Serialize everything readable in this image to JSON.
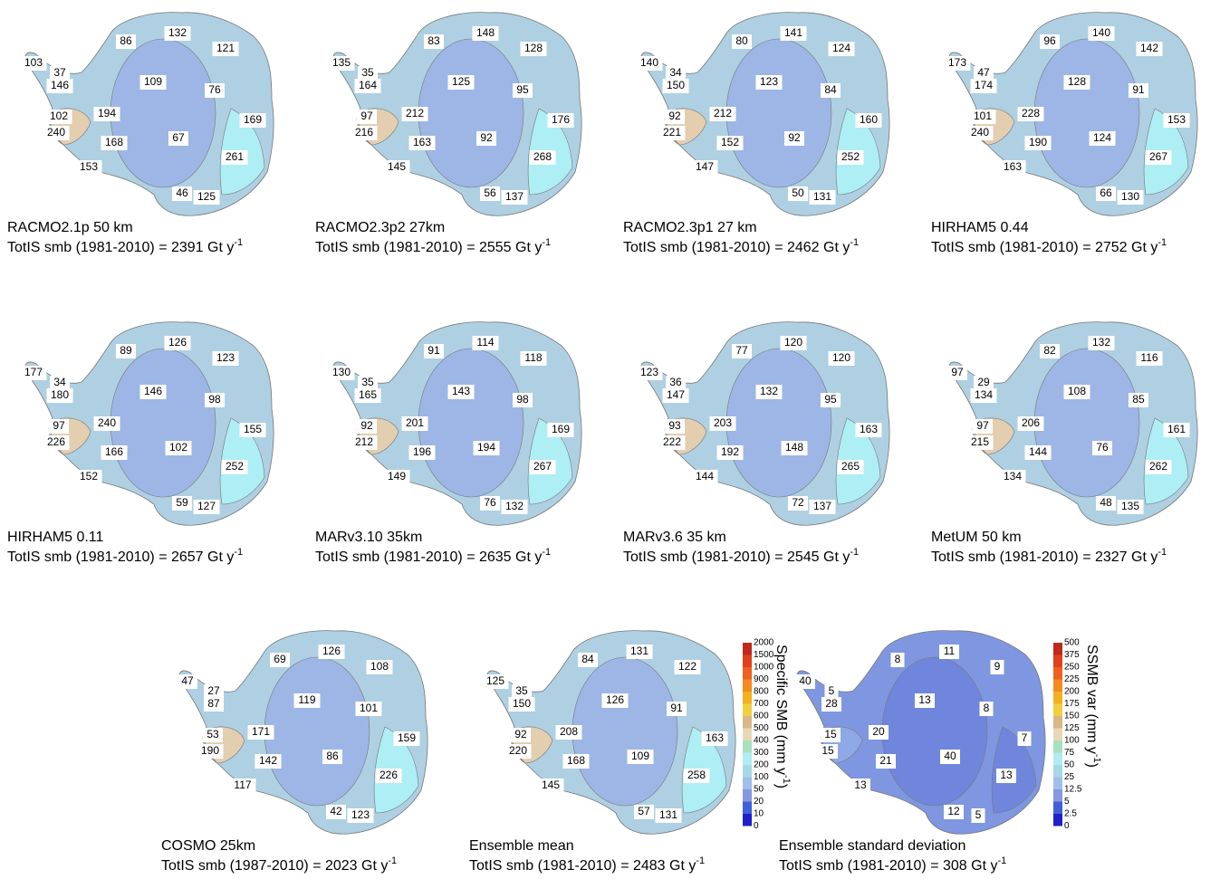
{
  "panels": [
    {
      "title": "RACMO2.1p 50 km",
      "subtitle": "TotIS smb (1981-2010) = 2391 Gt y",
      "subtitle_sup": "-1",
      "basins": [
        86,
        132,
        121,
        103,
        37,
        146,
        109,
        76,
        194,
        102,
        169,
        240,
        67,
        168,
        261,
        153,
        46,
        125
      ]
    },
    {
      "title": "RACMO2.3p2 27km",
      "subtitle": "TotIS smb (1981-2010) = 2555 Gt y",
      "subtitle_sup": "-1",
      "basins": [
        83,
        148,
        128,
        135,
        35,
        164,
        125,
        95,
        212,
        97,
        176,
        216,
        92,
        163,
        268,
        145,
        56,
        137
      ]
    },
    {
      "title": "RACMO2.3p1 27 km",
      "subtitle": "TotIS smb (1981-2010) = 2462 Gt y",
      "subtitle_sup": "-1",
      "basins": [
        80,
        141,
        124,
        140,
        34,
        150,
        123,
        84,
        212,
        92,
        160,
        221,
        92,
        152,
        252,
        147,
        50,
        131
      ]
    },
    {
      "title": "HIRHAM5 0.44",
      "subtitle": "TotIS smb (1981-2010) = 2752 Gt y",
      "subtitle_sup": "-1",
      "basins": [
        96,
        140,
        142,
        173,
        47,
        174,
        128,
        91,
        228,
        101,
        153,
        240,
        124,
        190,
        267,
        163,
        66,
        130
      ]
    },
    {
      "title": "HIRHAM5 0.11",
      "subtitle": "TotIS smb (1981-2010) = 2657 Gt y",
      "subtitle_sup": "-1",
      "basins": [
        89,
        126,
        123,
        177,
        34,
        180,
        146,
        98,
        240,
        97,
        155,
        226,
        102,
        166,
        252,
        152,
        59,
        127
      ]
    },
    {
      "title": "MARv3.10 35km",
      "subtitle": "TotIS smb (1981-2010) = 2635 Gt y",
      "subtitle_sup": "-1",
      "basins": [
        91,
        114,
        118,
        130,
        35,
        165,
        143,
        98,
        201,
        92,
        169,
        212,
        194,
        196,
        267,
        149,
        76,
        132
      ]
    },
    {
      "title": "MARv3.6 35 km",
      "subtitle": "TotIS smb (1981-2010) = 2545 Gt y",
      "subtitle_sup": "-1",
      "basins": [
        77,
        120,
        120,
        123,
        36,
        147,
        132,
        95,
        203,
        93,
        163,
        222,
        148,
        192,
        265,
        144,
        72,
        137
      ]
    },
    {
      "title": "MetUM 50 km",
      "subtitle": "TotIS smb (1981-2010) = 2327 Gt y",
      "subtitle_sup": "-1",
      "basins": [
        82,
        132,
        116,
        97,
        29,
        134,
        108,
        85,
        206,
        97,
        161,
        215,
        76,
        144,
        262,
        134,
        48,
        135
      ]
    },
    {
      "title": "COSMO 25km",
      "subtitle": "TotIS smb (1987-2010) = 2023 Gt y",
      "subtitle_sup": "-1",
      "basins": [
        69,
        126,
        108,
        47,
        27,
        87,
        119,
        101,
        171,
        53,
        159,
        190,
        86,
        142,
        226,
        117,
        42,
        123
      ]
    },
    {
      "title": "Ensemble mean",
      "subtitle": "TotIS smb (1981-2010) = 2483 Gt y",
      "subtitle_sup": "-1",
      "basins": [
        84,
        131,
        122,
        125,
        35,
        150,
        126,
        91,
        208,
        92,
        163,
        220,
        109,
        168,
        258,
        145,
        57,
        131
      ]
    },
    {
      "title": "Ensemble standard deviation",
      "subtitle": "TotIS smb (1981-2010) = 308 Gt y",
      "subtitle_sup": "-1",
      "basins": [
        8,
        11,
        9,
        40,
        5,
        28,
        13,
        8,
        20,
        15,
        7,
        15,
        40,
        21,
        13,
        13,
        12,
        5
      ]
    }
  ],
  "colorbars": [
    {
      "title": "Specific SMB (mm y",
      "title_sup": "-1",
      "title_end": ")",
      "ticks": [
        2000,
        1500,
        1000,
        900,
        800,
        700,
        600,
        500,
        400,
        300,
        200,
        100,
        50,
        20,
        10,
        0
      ],
      "colors": [
        "#c0281c",
        "#e0401c",
        "#f06020",
        "#f58a20",
        "#f5b020",
        "#f0d040",
        "#d8b888",
        "#e8d8b8",
        "#a8e0c0",
        "#b0ecf0",
        "#a8d8e8",
        "#a0c0e8",
        "#8898e0",
        "#4060d8",
        "#2020c8"
      ]
    },
    {
      "title": "SSMB var (mm y",
      "title_sup": "-1",
      "title_end": ")",
      "ticks": [
        500,
        375,
        250,
        225,
        200,
        175,
        150,
        125,
        100,
        75,
        50,
        25,
        12.5,
        5,
        2.5,
        0
      ],
      "colors": [
        "#c0281c",
        "#e0401c",
        "#f06020",
        "#f58a20",
        "#f5b020",
        "#f0d040",
        "#d8b888",
        "#e8d8b8",
        "#a8e0c0",
        "#b0ecf0",
        "#a8d8e8",
        "#a0c0e8",
        "#8898e0",
        "#4060d8",
        "#2020c8"
      ]
    }
  ]
}
